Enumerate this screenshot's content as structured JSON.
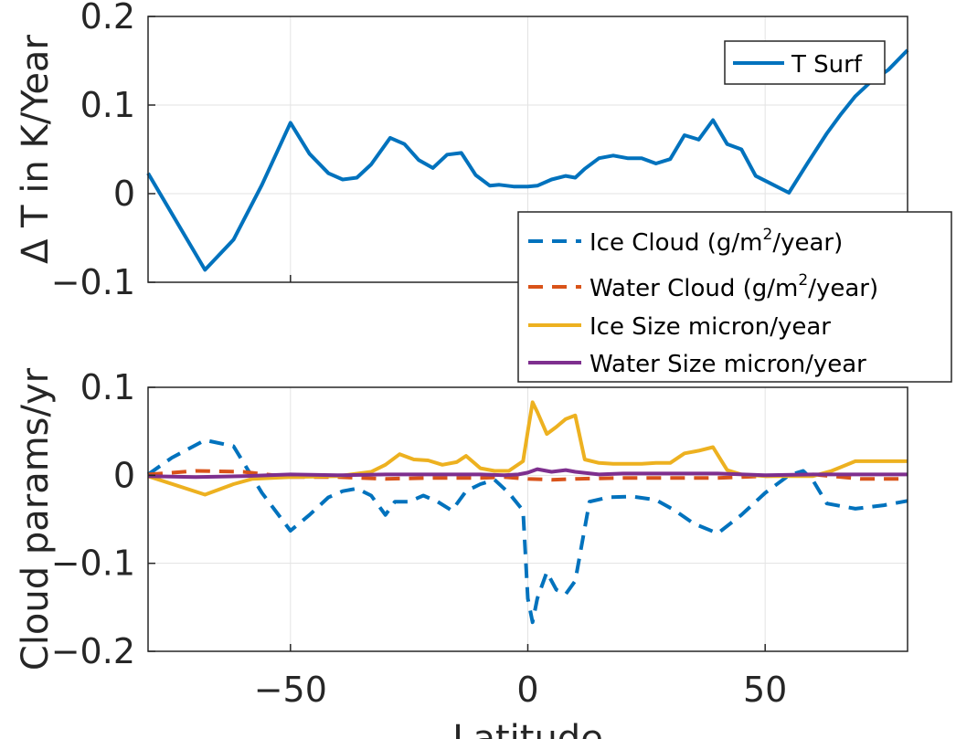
{
  "chart_data": [
    {
      "type": "line",
      "xlim": [
        -80,
        80
      ],
      "ylim": [
        -0.1,
        0.2
      ],
      "xticks": [
        -50,
        0,
        50
      ],
      "yticks": [
        -0.1,
        0,
        0.1,
        0.2
      ],
      "ytick_labels": [
        "−0.1",
        "0",
        "0.1",
        "0.2"
      ],
      "xlabel": "",
      "ylabel": "Δ T in K/Year",
      "grid": true,
      "legend_position": "top-right",
      "series": [
        {
          "name": "T Surf",
          "color": "#0072BD",
          "style": "solid",
          "x": [
            -80,
            -68,
            -62,
            -56,
            -50,
            -46,
            -42,
            -39,
            -36,
            -33,
            -29,
            -26,
            -23,
            -20,
            -17,
            -14,
            -11,
            -8,
            -6,
            -3,
            0,
            2,
            5,
            8,
            10,
            12,
            15,
            18,
            21,
            24,
            27,
            30,
            33,
            36,
            39,
            42,
            45,
            48,
            51,
            55,
            59,
            63,
            66,
            69,
            72,
            76,
            80
          ],
          "y": [
            0.023,
            -0.086,
            -0.052,
            0.01,
            0.08,
            0.045,
            0.023,
            0.016,
            0.018,
            0.033,
            0.063,
            0.056,
            0.038,
            0.029,
            0.044,
            0.046,
            0.021,
            0.009,
            0.01,
            0.008,
            0.008,
            0.009,
            0.016,
            0.02,
            0.018,
            0.028,
            0.04,
            0.043,
            0.04,
            0.04,
            0.034,
            0.039,
            0.066,
            0.061,
            0.083,
            0.056,
            0.05,
            0.02,
            0.012,
            0.001,
            0.035,
            0.068,
            0.09,
            0.11,
            0.125,
            0.14,
            0.162
          ]
        }
      ]
    },
    {
      "type": "line",
      "xlim": [
        -80,
        80
      ],
      "ylim": [
        -0.2,
        0.1
      ],
      "xticks": [
        -50,
        0,
        50
      ],
      "xtick_labels": [
        "−50",
        "0",
        "50"
      ],
      "yticks": [
        -0.2,
        -0.1,
        0,
        0.1
      ],
      "ytick_labels": [
        "−0.2",
        "−0.1",
        "0",
        "0.1"
      ],
      "xlabel": "Latitude",
      "ylabel": "Cloud params/yr",
      "grid": true,
      "legend_position": "top-right",
      "series": [
        {
          "name": "Ice Cloud (g/m2/year)",
          "legend_prefix": "Ice Cloud (g/m",
          "legend_sup": "2",
          "legend_suffix": "/year)",
          "color": "#0072BD",
          "style": "dashed",
          "x": [
            -80,
            -75,
            -68,
            -62,
            -56,
            -50,
            -46,
            -42,
            -39,
            -36,
            -33,
            -30,
            -28,
            -25,
            -22,
            -19,
            -16,
            -13,
            -10,
            -7,
            -4,
            -1,
            0,
            1,
            2,
            4,
            6,
            8,
            10,
            13,
            17,
            22,
            27,
            31,
            35,
            40,
            45,
            50,
            55,
            58,
            60,
            63,
            69,
            75,
            80
          ],
          "y": [
            0.001,
            0.02,
            0.04,
            0.033,
            -0.02,
            -0.063,
            -0.045,
            -0.025,
            -0.018,
            -0.015,
            -0.023,
            -0.045,
            -0.03,
            -0.03,
            -0.023,
            -0.03,
            -0.04,
            -0.018,
            -0.01,
            -0.005,
            -0.02,
            -0.04,
            -0.14,
            -0.167,
            -0.14,
            -0.11,
            -0.13,
            -0.135,
            -0.12,
            -0.03,
            -0.025,
            -0.024,
            -0.028,
            -0.04,
            -0.055,
            -0.066,
            -0.045,
            -0.02,
            0.0,
            0.005,
            -0.005,
            -0.032,
            -0.038,
            -0.034,
            -0.029
          ]
        },
        {
          "name": "Water Cloud (g/m2/year)",
          "legend_prefix": "Water Cloud (g/m",
          "legend_sup": "2",
          "legend_suffix": "/year)",
          "color": "#D95319",
          "style": "dashed",
          "x": [
            -80,
            -70,
            -60,
            -50,
            -40,
            -30,
            -20,
            -10,
            -5,
            0,
            5,
            10,
            20,
            30,
            40,
            50,
            60,
            70,
            80
          ],
          "y": [
            0.001,
            0.005,
            0.004,
            -0.002,
            -0.002,
            -0.004,
            -0.003,
            -0.003,
            -0.002,
            -0.004,
            -0.005,
            -0.004,
            -0.003,
            -0.003,
            -0.003,
            -0.001,
            0.001,
            -0.004,
            -0.004
          ]
        },
        {
          "name": "Ice Size micron/year",
          "color": "#EDB120",
          "style": "solid",
          "x": [
            -80,
            -68,
            -62,
            -58,
            -50,
            -40,
            -33,
            -30,
            -27,
            -24,
            -21,
            -18,
            -15,
            -13,
            -10,
            -7,
            -4,
            -1,
            0,
            1,
            2,
            4,
            6,
            8,
            10,
            12,
            15,
            18,
            21,
            24,
            27,
            30,
            33,
            36,
            39,
            42,
            45,
            50,
            55,
            60,
            64,
            69,
            75,
            80
          ],
          "y": [
            -0.001,
            -0.022,
            -0.01,
            -0.004,
            -0.002,
            -0.001,
            0.004,
            0.012,
            0.024,
            0.018,
            0.017,
            0.012,
            0.015,
            0.022,
            0.008,
            0.005,
            0.005,
            0.016,
            0.05,
            0.083,
            0.072,
            0.047,
            0.055,
            0.064,
            0.068,
            0.018,
            0.014,
            0.013,
            0.013,
            0.013,
            0.014,
            0.014,
            0.025,
            0.028,
            0.032,
            0.006,
            0.001,
            -0.001,
            -0.001,
            -0.001,
            0.005,
            0.016,
            0.016,
            0.016
          ]
        },
        {
          "name": "Water Size micron/year",
          "color": "#7E2F8E",
          "style": "solid",
          "x": [
            -80,
            -70,
            -60,
            -50,
            -40,
            -30,
            -20,
            -10,
            -5,
            -2,
            0,
            2,
            5,
            8,
            10,
            15,
            20,
            30,
            40,
            50,
            60,
            70,
            80
          ],
          "y": [
            -0.001,
            -0.002,
            -0.001,
            0.001,
            0.0,
            0.001,
            0.001,
            0.001,
            0.0,
            0.001,
            0.003,
            0.007,
            0.004,
            0.006,
            0.004,
            0.001,
            0.002,
            0.002,
            0.002,
            0.0,
            0.001,
            0.001,
            0.001
          ]
        }
      ]
    }
  ]
}
